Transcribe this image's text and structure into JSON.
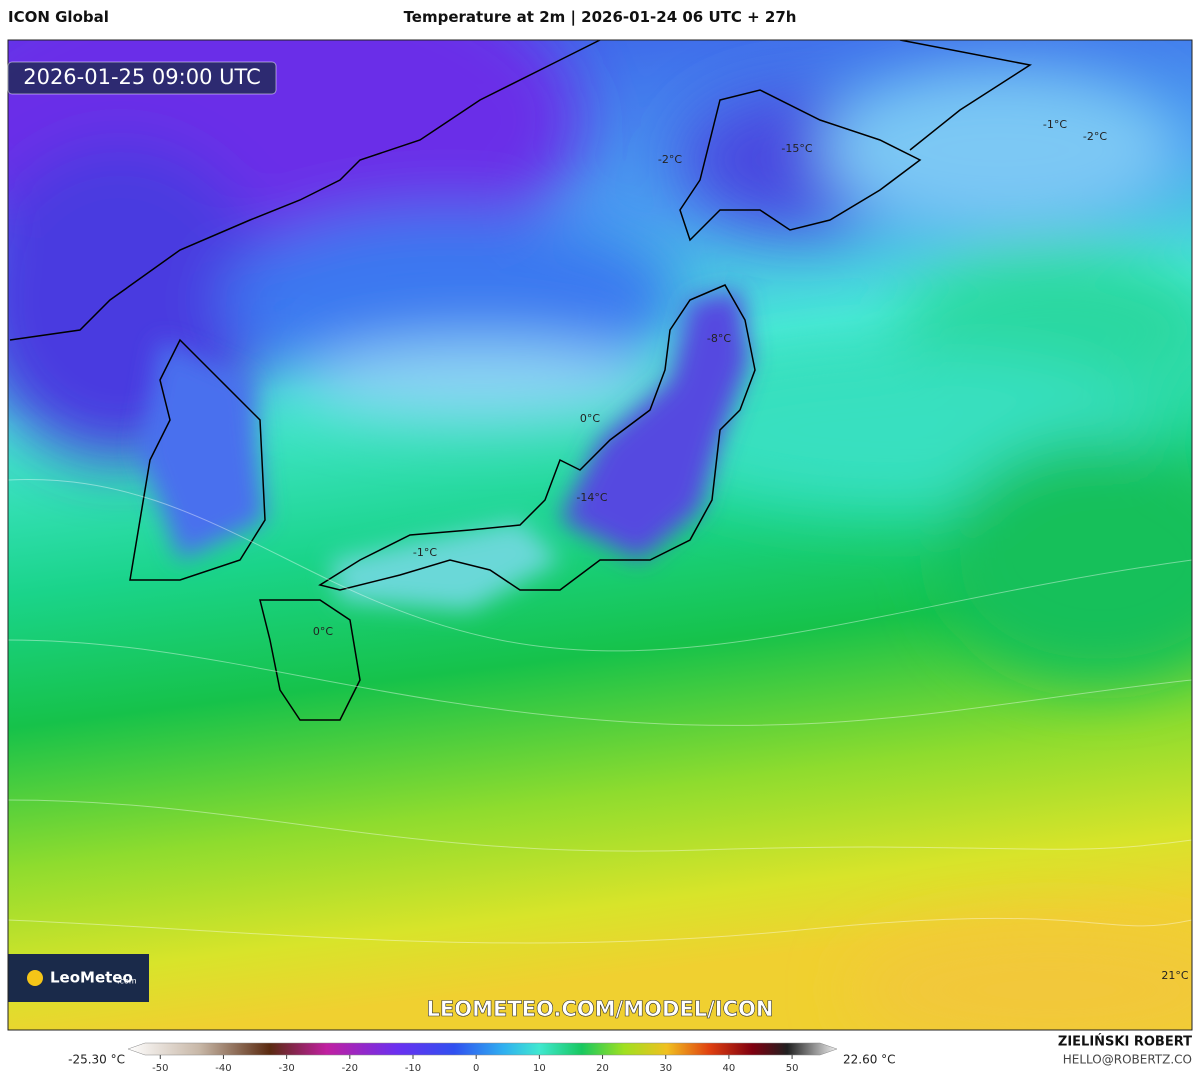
{
  "header": {
    "source": "ICON Global",
    "title": "Temperature at 2m | 2026-01-24 06 UTC + 27h"
  },
  "map": {
    "valid_time": "2026-01-25 09:00 UTC",
    "labels": [
      "-1°C",
      "-2°C",
      "-15°C",
      "-2°C",
      "-8°C",
      "0°C",
      "-14°C",
      "-1°C",
      "0°C",
      "21°C"
    ],
    "watermark": "LEOMETEO.COM/MODEL/ICON"
  },
  "logo": {
    "name": "LeoMeteo",
    "suffix": ".com"
  },
  "colorbar": {
    "min_label": "-25.30 °C",
    "max_label": "22.60 °C",
    "range": [
      -54,
      56
    ],
    "ticks": [
      -50,
      -40,
      -30,
      -20,
      -10,
      0,
      10,
      20,
      30,
      40,
      50
    ]
  },
  "footer": {
    "author": "ZIELIŃSKI ROBERT",
    "email": "HELLO@ROBERTZ.CO"
  }
}
